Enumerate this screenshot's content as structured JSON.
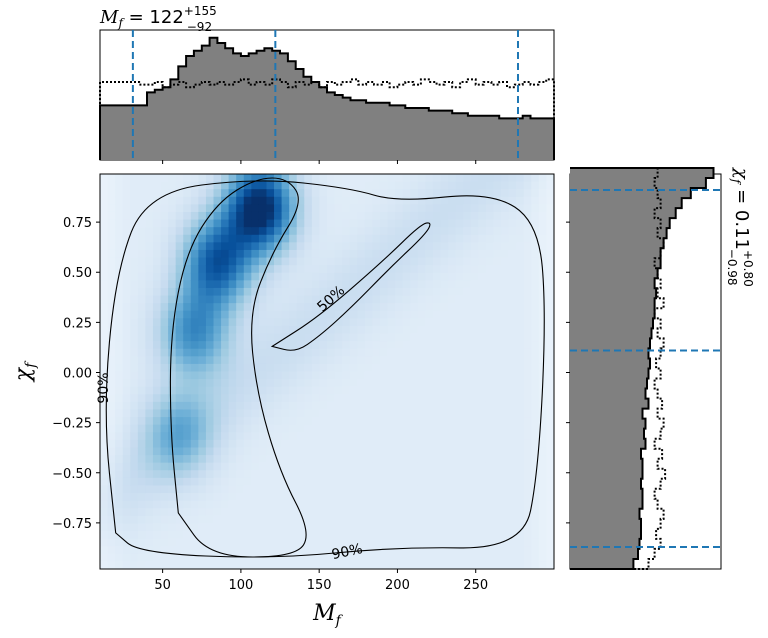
{
  "chart_data": {
    "type": "heatmap",
    "title_top": {
      "base": "M",
      "sub": "f",
      "value": " = 122",
      "sup": "+155",
      "inf": "−92"
    },
    "title_right": {
      "base": "χ",
      "sub": "f",
      "value": " = 0.11",
      "sup": "+0.80",
      "inf": "−0.98"
    },
    "xlabel": {
      "base": "M",
      "sub": "f"
    },
    "ylabel": {
      "base": "χ",
      "sub": "f"
    },
    "xlim": [
      10,
      300
    ],
    "ylim": [
      -0.98,
      0.99
    ],
    "xticks": [
      "50",
      "100",
      "150",
      "200",
      "250"
    ],
    "xtick_values": [
      50,
      100,
      150,
      200,
      250
    ],
    "yticks": [
      "0.75",
      "0.50",
      "0.25",
      "0.00",
      "−0.25",
      "−0.50",
      "−0.75"
    ],
    "ytick_values": [
      0.75,
      0.5,
      0.25,
      0.0,
      -0.25,
      -0.5,
      -0.75
    ],
    "colormap": "Blues",
    "density_peaks": [
      {
        "x": 112,
        "y": 0.82,
        "weight": 1.0
      },
      {
        "x": 85,
        "y": 0.55,
        "weight": 0.75
      },
      {
        "x": 70,
        "y": 0.2,
        "weight": 0.55
      },
      {
        "x": 60,
        "y": -0.3,
        "weight": 0.35
      }
    ],
    "contours": [
      {
        "level": "50%",
        "label": "50%",
        "points": [
          [
            60,
            -0.7
          ],
          [
            55,
            -0.3
          ],
          [
            55,
            0.2
          ],
          [
            65,
            0.6
          ],
          [
            85,
            0.85
          ],
          [
            110,
            0.97
          ],
          [
            130,
            0.97
          ],
          [
            140,
            0.85
          ],
          [
            120,
            0.6
          ],
          [
            105,
            0.3
          ],
          [
            110,
            -0.1
          ],
          [
            125,
            -0.5
          ],
          [
            145,
            -0.8
          ],
          [
            135,
            -0.92
          ],
          [
            80,
            -0.92
          ],
          [
            60,
            -0.7
          ]
        ]
      },
      {
        "level": "50%",
        "label": "50%",
        "points": [
          [
            120,
            0.13
          ],
          [
            150,
            0.28
          ],
          [
            190,
            0.55
          ],
          [
            215,
            0.74
          ],
          [
            222,
            0.75
          ],
          [
            218,
            0.69
          ],
          [
            195,
            0.52
          ],
          [
            170,
            0.32
          ],
          [
            150,
            0.18
          ],
          [
            135,
            0.1
          ],
          [
            120,
            0.13
          ]
        ]
      },
      {
        "level": "90%",
        "label": "90%",
        "points": [
          [
            20,
            -0.8
          ],
          [
            12,
            -0.2
          ],
          [
            20,
            0.5
          ],
          [
            40,
            0.9
          ],
          [
            110,
            0.97
          ],
          [
            170,
            0.92
          ],
          [
            200,
            0.85
          ],
          [
            260,
            0.9
          ],
          [
            290,
            0.75
          ],
          [
            295,
            0.3
          ],
          [
            290,
            -0.5
          ],
          [
            280,
            -0.88
          ],
          [
            200,
            -0.87
          ],
          [
            120,
            -0.93
          ],
          [
            35,
            -0.9
          ],
          [
            20,
            -0.8
          ]
        ]
      }
    ],
    "quantile_lines": {
      "M_f": [
        31,
        122,
        277
      ],
      "chi_f": [
        -0.87,
        0.11,
        0.91
      ]
    },
    "marginal_x": {
      "bin_edges_start": 10,
      "bin_width": 5,
      "posterior": [
        0.42,
        0.42,
        0.42,
        0.42,
        0.42,
        0.42,
        0.52,
        0.54,
        0.56,
        0.62,
        0.72,
        0.8,
        0.84,
        0.88,
        0.94,
        0.9,
        0.86,
        0.82,
        0.8,
        0.82,
        0.84,
        0.86,
        0.84,
        0.82,
        0.76,
        0.7,
        0.64,
        0.6,
        0.56,
        0.52,
        0.5,
        0.48,
        0.46,
        0.46,
        0.44,
        0.44,
        0.44,
        0.42,
        0.42,
        0.4,
        0.4,
        0.4,
        0.38,
        0.38,
        0.38,
        0.36,
        0.36,
        0.34,
        0.34,
        0.34,
        0.34,
        0.32,
        0.32,
        0.32,
        0.34,
        0.32,
        0.32,
        0.32
      ],
      "prior": [
        0.6,
        0.6,
        0.6,
        0.6,
        0.6,
        0.58,
        0.58,
        0.6,
        0.56,
        0.58,
        0.6,
        0.56,
        0.58,
        0.6,
        0.58,
        0.6,
        0.58,
        0.6,
        0.62,
        0.58,
        0.6,
        0.58,
        0.62,
        0.6,
        0.56,
        0.6,
        0.58,
        0.6,
        0.56,
        0.6,
        0.58,
        0.6,
        0.62,
        0.58,
        0.6,
        0.58,
        0.6,
        0.56,
        0.58,
        0.6,
        0.58,
        0.62,
        0.6,
        0.58,
        0.6,
        0.56,
        0.6,
        0.62,
        0.58,
        0.6,
        0.58,
        0.6,
        0.56,
        0.58,
        0.6,
        0.58,
        0.6,
        0.62
      ]
    },
    "marginal_y": {
      "bin_edges_start": -0.98,
      "bin_width": 0.05,
      "posterior": [
        0.42,
        0.45,
        0.46,
        0.47,
        0.47,
        0.46,
        0.48,
        0.48,
        0.47,
        0.48,
        0.48,
        0.47,
        0.5,
        0.49,
        0.5,
        0.48,
        0.52,
        0.5,
        0.51,
        0.52,
        0.53,
        0.52,
        0.53,
        0.54,
        0.55,
        0.56,
        0.56,
        0.57,
        0.56,
        0.58,
        0.6,
        0.6,
        0.62,
        0.64,
        0.66,
        0.7,
        0.74,
        0.8,
        0.9,
        0.95
      ],
      "prior": [
        0.52,
        0.56,
        0.6,
        0.57,
        0.6,
        0.62,
        0.58,
        0.56,
        0.6,
        0.63,
        0.58,
        0.61,
        0.56,
        0.6,
        0.62,
        0.58,
        0.61,
        0.58,
        0.56,
        0.6,
        0.57,
        0.6,
        0.62,
        0.58,
        0.6,
        0.56,
        0.62,
        0.58,
        0.6,
        0.58,
        0.56,
        0.6,
        0.62,
        0.58,
        0.6,
        0.56,
        0.6,
        0.58,
        0.56,
        0.58
      ]
    },
    "colors": {
      "posterior_fill": "#808080",
      "posterior_edge": "#000000",
      "prior_line": "#000000",
      "quantile_line": "#1f77b4",
      "contour": "#000000"
    },
    "grid": false,
    "legend": "none"
  }
}
